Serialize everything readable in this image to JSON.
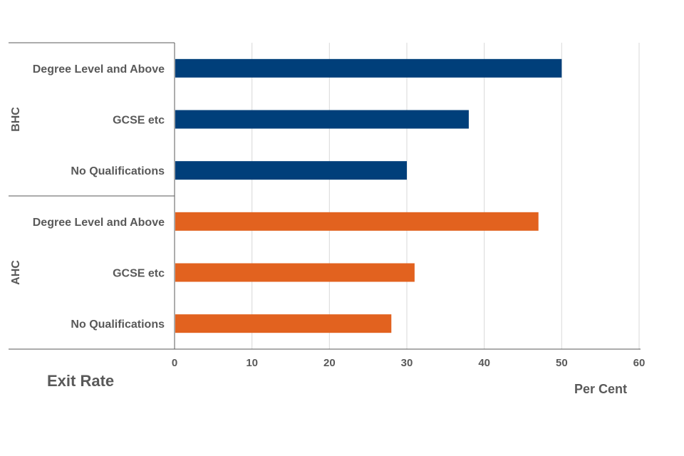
{
  "title": "Exit Rate",
  "x_axis_label": "Per Cent",
  "colors": {
    "BHC": "#003f7a",
    "AHC": "#e2621f"
  },
  "chart_data": {
    "type": "bar",
    "orientation": "horizontal",
    "xlim": [
      0,
      60
    ],
    "xticks": [
      0,
      10,
      20,
      30,
      40,
      50,
      60
    ],
    "xlabel": "Per Cent",
    "grid": true,
    "groups": [
      {
        "name": "BHC",
        "categories": [
          "Degree Level and Above",
          "GCSE etc",
          "No Qualifications"
        ],
        "values": [
          50,
          38,
          30
        ]
      },
      {
        "name": "AHC",
        "categories": [
          "Degree Level and Above",
          "GCSE etc",
          "No Qualifications"
        ],
        "values": [
          47,
          31,
          28
        ]
      }
    ]
  }
}
